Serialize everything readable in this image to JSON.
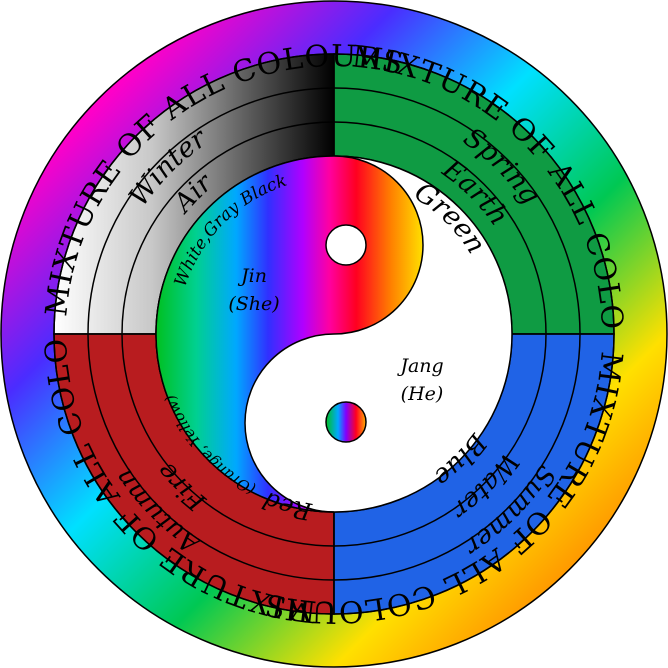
{
  "outer_ring": {
    "label": "MIXTURE OF ALL COLOURS"
  },
  "quadrants": {
    "winter": {
      "season": "Winter",
      "element": "Air",
      "colour": "White,Gray Black"
    },
    "spring": {
      "season": "Spring",
      "element": "Earth",
      "colour": "Green"
    },
    "autumn": {
      "season": "Autumn",
      "element": "Fire",
      "colour": "Red",
      "colour_note": "(Orange, Yellow)"
    },
    "summer": {
      "season": "Summer",
      "element": "Water",
      "colour": "Blue"
    }
  },
  "yin": {
    "name": "Jin",
    "sub": "(She)"
  },
  "yang": {
    "name": "Jang",
    "sub": "(He)"
  },
  "colors": {
    "green": "#0f9b43",
    "blue": "#2063e6",
    "red": "#b81c1f",
    "black": "#000000",
    "white": "#ffffff"
  }
}
